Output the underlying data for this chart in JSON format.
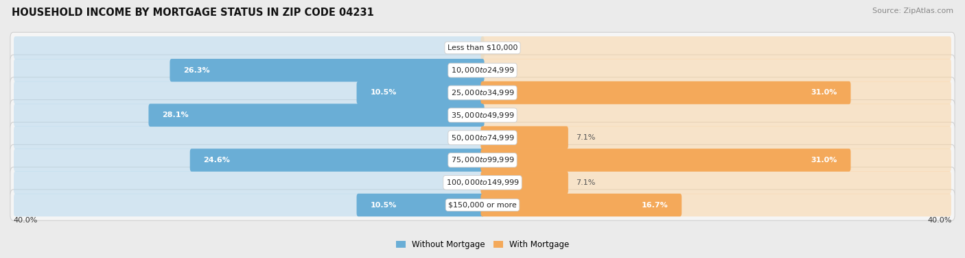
{
  "title": "HOUSEHOLD INCOME BY MORTGAGE STATUS IN ZIP CODE 04231",
  "source": "Source: ZipAtlas.com",
  "categories": [
    "Less than $10,000",
    "$10,000 to $24,999",
    "$25,000 to $34,999",
    "$35,000 to $49,999",
    "$50,000 to $74,999",
    "$75,000 to $99,999",
    "$100,000 to $149,999",
    "$150,000 or more"
  ],
  "without_mortgage": [
    0.0,
    26.3,
    10.5,
    28.1,
    0.0,
    24.6,
    0.0,
    10.5
  ],
  "with_mortgage": [
    0.0,
    0.0,
    31.0,
    0.0,
    7.1,
    31.0,
    7.1,
    16.7
  ],
  "axis_max": 40.0,
  "color_without": "#6aaed6",
  "color_with": "#f4a95a",
  "color_without_light": "#b8d9ee",
  "color_with_light": "#fad5a5",
  "bg_color": "#ebebeb",
  "row_bg_color": "#f5f5f5",
  "row_border_color": "#d0d0d0",
  "legend_label_without": "Without Mortgage",
  "legend_label_with": "With Mortgage",
  "axis_label_left": "40.0%",
  "axis_label_right": "40.0%"
}
